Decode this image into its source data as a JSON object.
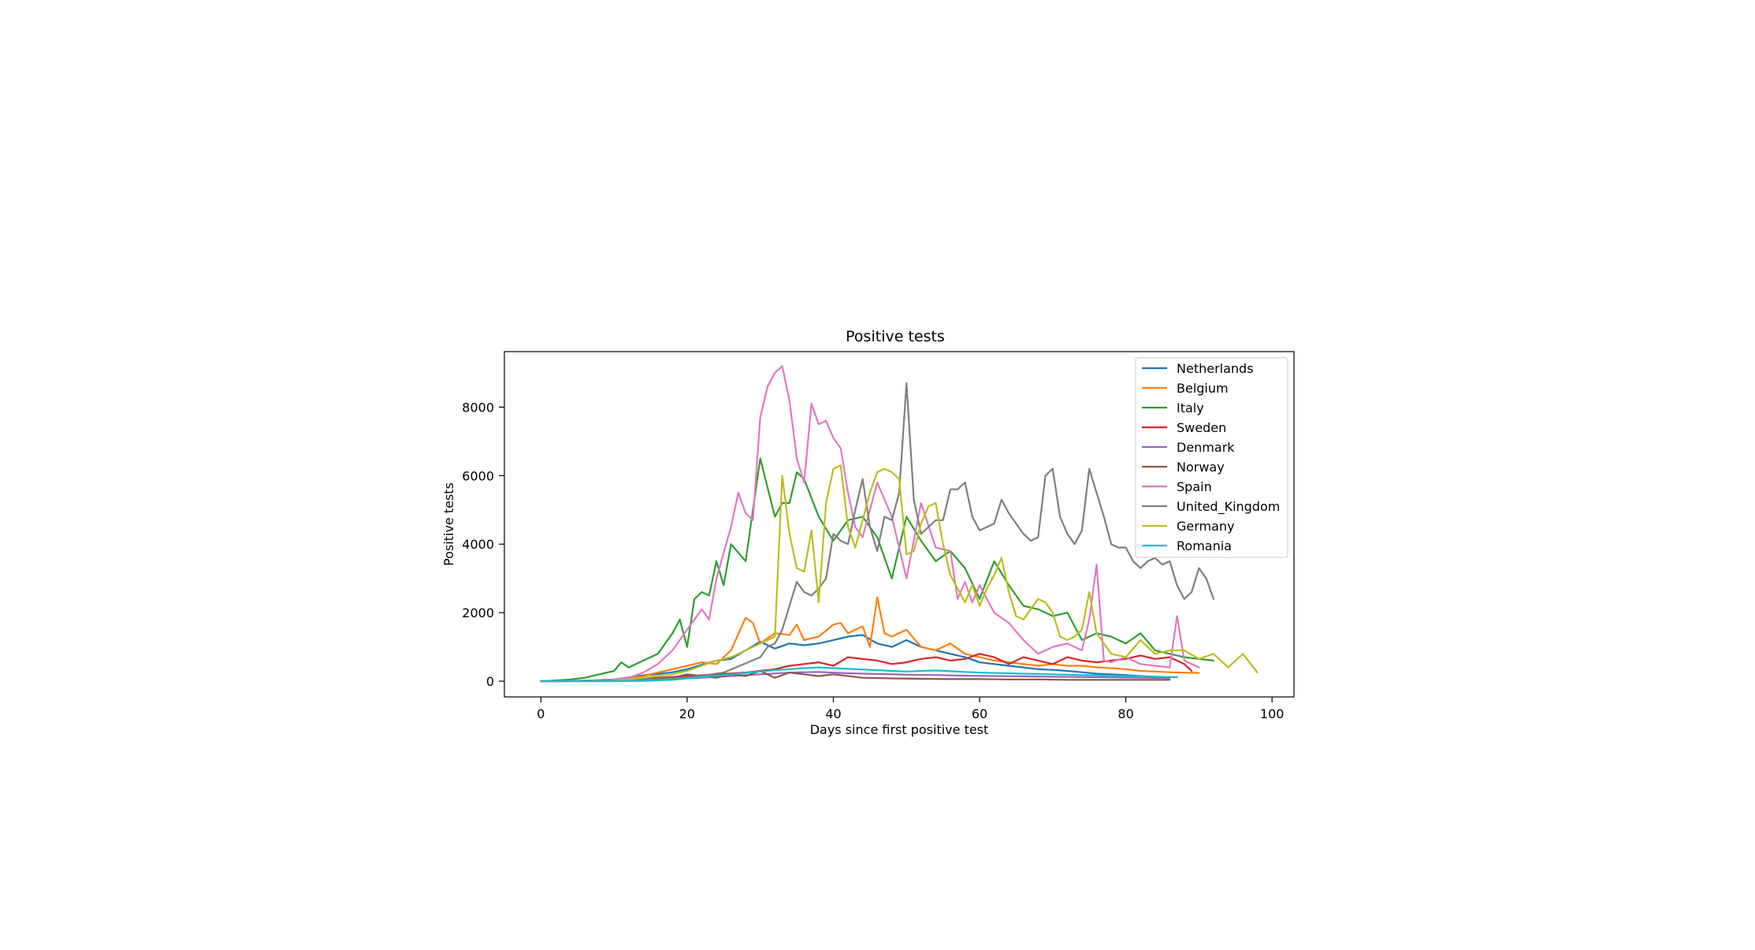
{
  "chart_data": {
    "type": "line",
    "title": "Positive tests",
    "xlabel": "Days since first positive test",
    "ylabel": "Positive tests",
    "xlim": [
      -5,
      103
    ],
    "ylim": [
      -460,
      9620
    ],
    "xticks": [
      0,
      20,
      40,
      60,
      80,
      100
    ],
    "yticks": [
      0,
      2000,
      4000,
      6000,
      8000
    ],
    "xtick_labels": [
      "0",
      "20",
      "40",
      "60",
      "80",
      "100"
    ],
    "ytick_labels": [
      "0",
      "2000",
      "4000",
      "6000",
      "8000"
    ],
    "grid": false,
    "legend_position": "top-right",
    "series": [
      {
        "name": "Netherlands",
        "color": "#1f77b4",
        "x": [
          0,
          2,
          4,
          6,
          8,
          10,
          12,
          14,
          16,
          18,
          20,
          22,
          24,
          26,
          28,
          30,
          32,
          34,
          36,
          38,
          40,
          42,
          44,
          46,
          48,
          50,
          52,
          54,
          56,
          58,
          60,
          62,
          64,
          66,
          68,
          70,
          72,
          74,
          76,
          78,
          80,
          82,
          84,
          86,
          87
        ],
        "y": [
          0,
          0,
          5,
          15,
          30,
          50,
          110,
          170,
          210,
          260,
          350,
          480,
          600,
          650,
          900,
          1150,
          950,
          1100,
          1050,
          1100,
          1200,
          1300,
          1350,
          1100,
          1000,
          1200,
          1000,
          900,
          800,
          700,
          550,
          500,
          450,
          400,
          350,
          330,
          300,
          260,
          220,
          200,
          180,
          150,
          130,
          120,
          120
        ]
      },
      {
        "name": "Belgium",
        "color": "#ff7f0e",
        "x": [
          0,
          2,
          4,
          6,
          8,
          10,
          12,
          14,
          16,
          18,
          20,
          22,
          24,
          26,
          28,
          29,
          30,
          32,
          34,
          35,
          36,
          38,
          40,
          41,
          42,
          44,
          45,
          46,
          47,
          48,
          50,
          52,
          54,
          56,
          58,
          60,
          62,
          64,
          66,
          68,
          70,
          72,
          74,
          76,
          78,
          80,
          82,
          84,
          86,
          88,
          90
        ],
        "y": [
          0,
          0,
          5,
          10,
          20,
          40,
          80,
          150,
          250,
          350,
          450,
          550,
          500,
          900,
          1850,
          1700,
          1100,
          1400,
          1350,
          1650,
          1200,
          1300,
          1650,
          1700,
          1400,
          1600,
          1000,
          2450,
          1400,
          1300,
          1500,
          1000,
          900,
          1100,
          800,
          700,
          600,
          550,
          500,
          450,
          500,
          450,
          450,
          400,
          380,
          350,
          300,
          280,
          260,
          250,
          240
        ]
      },
      {
        "name": "Italy",
        "color": "#2ca02c",
        "x": [
          0,
          2,
          4,
          6,
          8,
          10,
          11,
          12,
          14,
          16,
          18,
          19,
          20,
          21,
          22,
          23,
          24,
          25,
          26,
          28,
          30,
          32,
          33,
          34,
          35,
          36,
          38,
          40,
          42,
          44,
          46,
          48,
          50,
          52,
          54,
          56,
          58,
          60,
          62,
          64,
          66,
          68,
          70,
          72,
          74,
          76,
          78,
          80,
          82,
          84,
          86,
          88,
          90,
          92
        ],
        "y": [
          0,
          20,
          50,
          100,
          200,
          300,
          550,
          400,
          600,
          800,
          1400,
          1800,
          1000,
          2400,
          2600,
          2500,
          3500,
          2800,
          4000,
          3500,
          6500,
          4800,
          5200,
          5200,
          6100,
          5900,
          4800,
          4100,
          4700,
          4800,
          4200,
          3000,
          4800,
          4100,
          3500,
          3800,
          3300,
          2400,
          3500,
          2800,
          2200,
          2100,
          1900,
          2000,
          1200,
          1400,
          1300,
          1100,
          1400,
          900,
          800,
          700,
          650,
          600
        ]
      },
      {
        "name": "Sweden",
        "color": "#d62728",
        "x": [
          0,
          4,
          8,
          12,
          16,
          20,
          24,
          28,
          32,
          34,
          36,
          38,
          40,
          42,
          44,
          46,
          48,
          50,
          52,
          54,
          56,
          58,
          60,
          62,
          64,
          66,
          68,
          70,
          72,
          74,
          76,
          78,
          80,
          82,
          84,
          86,
          88,
          89
        ],
        "y": [
          0,
          0,
          10,
          50,
          100,
          150,
          200,
          250,
          350,
          450,
          500,
          550,
          450,
          700,
          650,
          600,
          500,
          550,
          650,
          700,
          600,
          650,
          800,
          700,
          500,
          700,
          600,
          500,
          700,
          600,
          550,
          600,
          650,
          750,
          650,
          700,
          500,
          300
        ]
      },
      {
        "name": "Denmark",
        "color": "#9467bd",
        "x": [
          0,
          10,
          14,
          18,
          22,
          26,
          30,
          34,
          38,
          42,
          46,
          50,
          54,
          58,
          62,
          66,
          70,
          74,
          78,
          82,
          86
        ],
        "y": [
          0,
          10,
          40,
          70,
          100,
          150,
          200,
          250,
          270,
          230,
          210,
          190,
          180,
          160,
          150,
          140,
          130,
          120,
          110,
          100,
          90
        ]
      },
      {
        "name": "Norway",
        "color": "#8c564b",
        "x": [
          0,
          10,
          14,
          18,
          20,
          22,
          24,
          26,
          28,
          30,
          32,
          34,
          36,
          38,
          40,
          44,
          48,
          52,
          56,
          60,
          64,
          68,
          72,
          76,
          80,
          84,
          86
        ],
        "y": [
          0,
          20,
          60,
          100,
          200,
          150,
          100,
          200,
          150,
          300,
          100,
          250,
          200,
          150,
          200,
          100,
          80,
          70,
          60,
          60,
          50,
          50,
          40,
          40,
          40,
          40,
          40
        ]
      },
      {
        "name": "Spain",
        "color": "#e377c2",
        "x": [
          0,
          8,
          10,
          12,
          14,
          16,
          18,
          20,
          21,
          22,
          23,
          24,
          26,
          27,
          28,
          29,
          30,
          31,
          32,
          33,
          34,
          35,
          36,
          37,
          38,
          39,
          40,
          41,
          42,
          43,
          44,
          46,
          48,
          50,
          52,
          54,
          56,
          57,
          58,
          59,
          60,
          62,
          64,
          66,
          68,
          70,
          72,
          74,
          75,
          76,
          77,
          78,
          80,
          82,
          84,
          86,
          87,
          88,
          90
        ],
        "y": [
          0,
          0,
          50,
          100,
          250,
          500,
          900,
          1500,
          1800,
          2100,
          1800,
          3000,
          4500,
          5500,
          4900,
          4700,
          7700,
          8600,
          9000,
          9200,
          8200,
          6500,
          5800,
          8100,
          7500,
          7600,
          7100,
          6800,
          5500,
          4500,
          4200,
          5800,
          4800,
          3000,
          5200,
          3900,
          3800,
          2400,
          2900,
          2300,
          2800,
          2000,
          1700,
          1200,
          800,
          1000,
          1100,
          900,
          1800,
          3400,
          600,
          550,
          700,
          500,
          450,
          400,
          1900,
          600,
          400
        ]
      },
      {
        "name": "United_Kingdom",
        "color": "#7f7f7f",
        "x": [
          0,
          10,
          20,
          25,
          30,
          31,
          32,
          33,
          34,
          35,
          36,
          37,
          38,
          39,
          40,
          41,
          42,
          43,
          44,
          45,
          46,
          47,
          48,
          49,
          50,
          51,
          52,
          53,
          54,
          55,
          56,
          57,
          58,
          59,
          60,
          61,
          62,
          63,
          64,
          65,
          66,
          67,
          68,
          69,
          70,
          71,
          72,
          73,
          74,
          75,
          76,
          77,
          78,
          79,
          80,
          81,
          82,
          83,
          84,
          85,
          86,
          87,
          88,
          89,
          90,
          91,
          92
        ],
        "y": [
          0,
          20,
          100,
          250,
          700,
          1000,
          1100,
          1500,
          2200,
          2900,
          2600,
          2500,
          2700,
          3000,
          4300,
          4100,
          4000,
          5000,
          5900,
          4500,
          3800,
          4800,
          4700,
          5500,
          8700,
          5300,
          4300,
          4500,
          4700,
          4700,
          5600,
          5600,
          5800,
          4800,
          4400,
          4500,
          4600,
          5300,
          4900,
          4600,
          4300,
          4100,
          4200,
          6000,
          6200,
          4800,
          4300,
          4000,
          4400,
          6200,
          5500,
          4800,
          4000,
          3900,
          3900,
          3500,
          3300,
          3500,
          3600,
          3400,
          3500,
          2800,
          2400,
          2600,
          3300,
          3000,
          2400
        ]
      },
      {
        "name": "Germany",
        "color": "#bcbd22",
        "x": [
          0,
          10,
          14,
          18,
          20,
          22,
          24,
          26,
          28,
          30,
          31,
          32,
          33,
          34,
          35,
          36,
          37,
          38,
          39,
          40,
          41,
          42,
          43,
          44,
          45,
          46,
          47,
          48,
          49,
          50,
          51,
          52,
          53,
          54,
          55,
          56,
          57,
          58,
          59,
          60,
          61,
          62,
          63,
          64,
          65,
          66,
          67,
          68,
          69,
          70,
          71,
          72,
          73,
          74,
          75,
          76,
          78,
          80,
          82,
          84,
          86,
          88,
          90,
          92,
          94,
          96,
          98
        ],
        "y": [
          0,
          10,
          100,
          200,
          300,
          450,
          600,
          700,
          900,
          1100,
          1200,
          1300,
          6000,
          4300,
          3300,
          3200,
          4400,
          2300,
          5200,
          6200,
          6300,
          4500,
          3900,
          4700,
          5500,
          6100,
          6200,
          6100,
          5900,
          3700,
          3800,
          4600,
          5100,
          5200,
          4000,
          3100,
          2700,
          2300,
          2800,
          2200,
          2700,
          3100,
          3600,
          2600,
          1900,
          1800,
          2100,
          2400,
          2300,
          2000,
          1300,
          1200,
          1300,
          1500,
          2600,
          1400,
          800,
          700,
          1200,
          800,
          900,
          900,
          650,
          800,
          400,
          800,
          250
        ]
      },
      {
        "name": "Romania",
        "color": "#17becf",
        "x": [
          0,
          10,
          14,
          18,
          20,
          22,
          24,
          26,
          28,
          30,
          32,
          34,
          36,
          38,
          40,
          42,
          44,
          46,
          48,
          50,
          52,
          54,
          56,
          58,
          60,
          62,
          64,
          66,
          68,
          70,
          72,
          74,
          76,
          78,
          80,
          82,
          84,
          86,
          87
        ],
        "y": [
          0,
          0,
          10,
          40,
          80,
          120,
          160,
          200,
          240,
          280,
          320,
          350,
          380,
          400,
          380,
          360,
          340,
          320,
          300,
          280,
          300,
          310,
          290,
          270,
          250,
          240,
          230,
          220,
          210,
          200,
          190,
          180,
          170,
          160,
          150,
          140,
          130,
          120,
          110
        ]
      }
    ]
  }
}
